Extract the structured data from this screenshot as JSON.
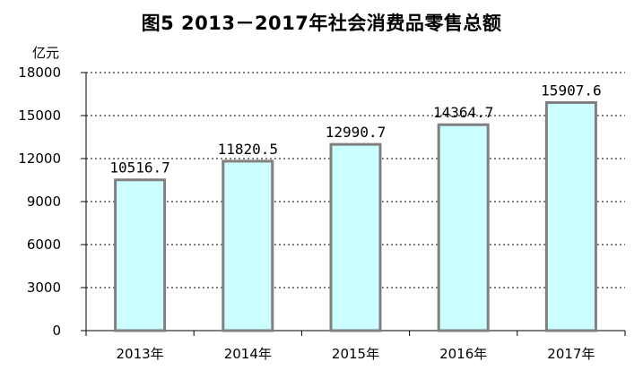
{
  "chart_data": {
    "type": "bar",
    "title": "图5 2013－2017年社会消费品零售总额",
    "ylabel": "亿元",
    "xlabel": "",
    "categories": [
      "2013年",
      "2014年",
      "2015年",
      "2016年",
      "2017年"
    ],
    "values": [
      10516.7,
      11820.5,
      12990.7,
      14364.7,
      15907.6
    ],
    "data_labels": [
      "10516.7",
      "11820.5",
      "12990.7",
      "14364.7",
      "15907.6"
    ],
    "ylim": [
      0,
      18000
    ],
    "yticks": [
      0,
      3000,
      6000,
      9000,
      12000,
      15000,
      18000
    ],
    "grid": true,
    "colors": {
      "bar_fill": "#ccffff",
      "bar_stroke": "#808080",
      "grid": "#000000"
    }
  }
}
